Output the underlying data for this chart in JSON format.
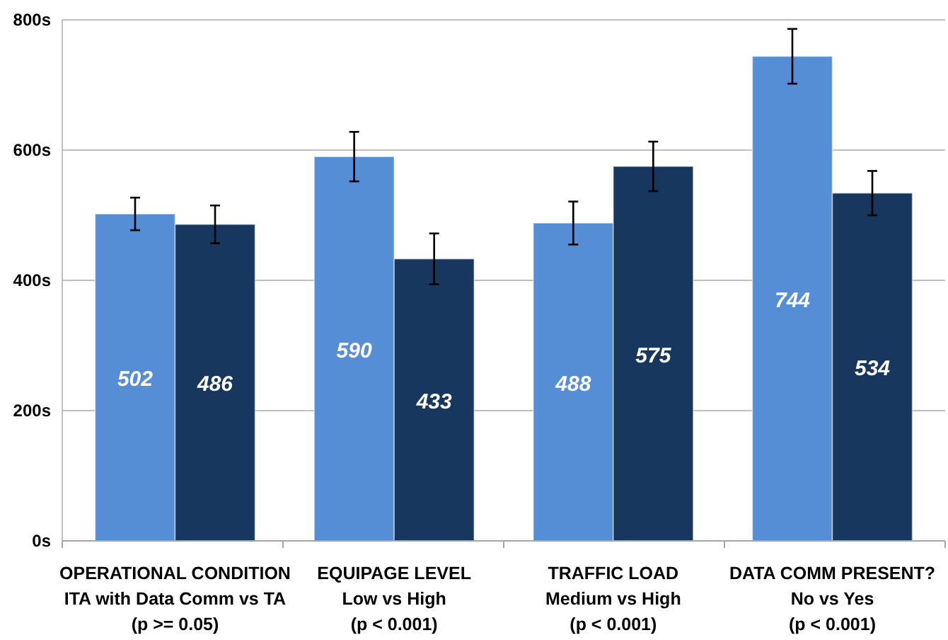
{
  "chart_data": {
    "type": "bar",
    "categories": [
      "OPERATIONAL CONDITION\nITA with Data Comm vs TA\n(p >= 0.05)",
      "EQUIPAGE LEVEL\nLow vs High\n(p < 0.001)",
      "TRAFFIC LOAD\nMedium vs High\n(p < 0.001)",
      "DATA COMM PRESENT?\nNo vs Yes\n(p < 0.001)"
    ],
    "series": [
      {
        "color": "#558ed5",
        "values": [
          502,
          590,
          488,
          744
        ],
        "errors": [
          25,
          38,
          33,
          42
        ]
      },
      {
        "color": "#17375e",
        "values": [
          486,
          433,
          575,
          534
        ],
        "errors": [
          29,
          39,
          38,
          34
        ]
      }
    ],
    "ylim": [
      0,
      800
    ],
    "yticks": [
      {
        "value": 0,
        "label": "0s"
      },
      {
        "value": 200,
        "label": "200s"
      },
      {
        "value": 400,
        "label": "400s"
      },
      {
        "value": 600,
        "label": "600s"
      },
      {
        "value": 800,
        "label": "800s"
      }
    ],
    "grid": "y",
    "data_labels": true
  }
}
